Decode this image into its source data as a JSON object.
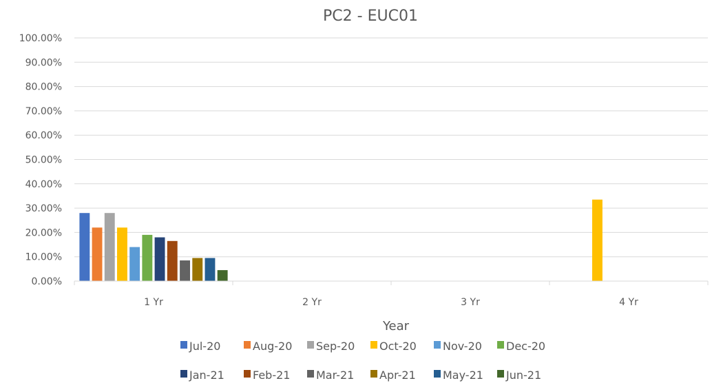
{
  "chart_data": {
    "type": "bar",
    "title": "PC2 - EUC01",
    "xlabel": "Year",
    "ylabel": "",
    "categories": [
      "1 Yr",
      "2 Yr",
      "3 Yr",
      "4 Yr"
    ],
    "yticks": [
      "0.00%",
      "10.00%",
      "20.00%",
      "30.00%",
      "40.00%",
      "50.00%",
      "60.00%",
      "70.00%",
      "80.00%",
      "90.00%",
      "100.00%"
    ],
    "ylim": [
      0,
      100
    ],
    "grid": true,
    "legend_position": "bottom",
    "series": [
      {
        "name": "Jul-20",
        "color": "#4472C4",
        "values": [
          28,
          0,
          0,
          0
        ]
      },
      {
        "name": "Aug-20",
        "color": "#ED7D31",
        "values": [
          22,
          0,
          0,
          0
        ]
      },
      {
        "name": "Sep-20",
        "color": "#A5A5A5",
        "values": [
          28,
          0,
          0,
          0
        ]
      },
      {
        "name": "Oct-20",
        "color": "#FFC000",
        "values": [
          22,
          0,
          0,
          33.5
        ]
      },
      {
        "name": "Nov-20",
        "color": "#5B9BD5",
        "values": [
          14,
          0,
          0,
          0
        ]
      },
      {
        "name": "Dec-20",
        "color": "#70AD47",
        "values": [
          19,
          0,
          0,
          0
        ]
      },
      {
        "name": "Jan-21",
        "color": "#264478",
        "values": [
          18,
          0,
          0,
          0
        ]
      },
      {
        "name": "Feb-21",
        "color": "#9E480E",
        "values": [
          16.5,
          0,
          0,
          0
        ]
      },
      {
        "name": "Mar-21",
        "color": "#636363",
        "values": [
          8.5,
          0,
          0,
          0
        ]
      },
      {
        "name": "Apr-21",
        "color": "#997300",
        "values": [
          9.5,
          0,
          0,
          0
        ]
      },
      {
        "name": "May-21",
        "color": "#255E91",
        "values": [
          9.5,
          0,
          0,
          0
        ]
      },
      {
        "name": "Jun-21",
        "color": "#43682B",
        "values": [
          4.5,
          0,
          0,
          0
        ]
      }
    ]
  }
}
